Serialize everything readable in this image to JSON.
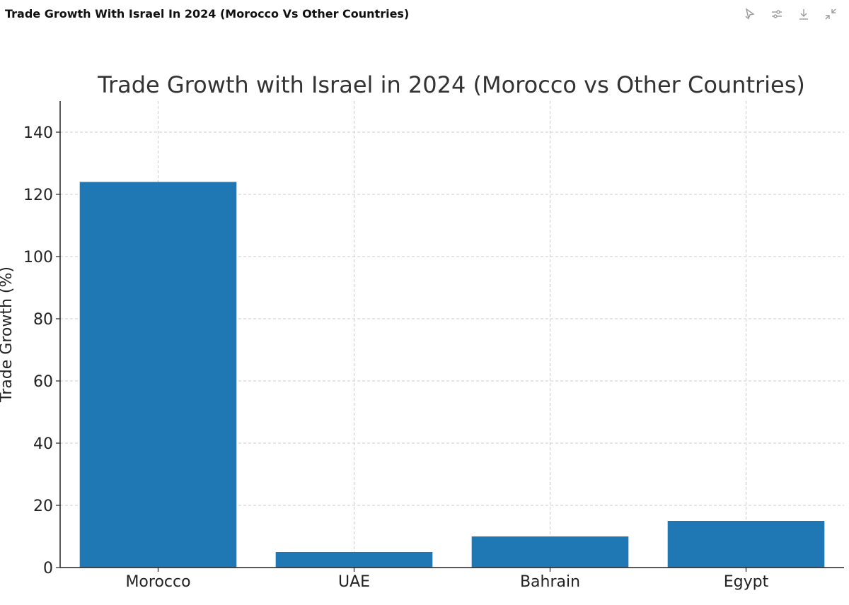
{
  "window": {
    "title": "Trade Growth With Israel In 2024 (Morocco Vs Other Countries)"
  },
  "toolbar": {
    "icons": [
      "interactive-mode-icon",
      "settings-sliders-icon",
      "download-icon",
      "collapse-icon"
    ]
  },
  "chart_data": {
    "type": "bar",
    "title": "Trade Growth with Israel in 2024 (Morocco vs Other Countries)",
    "xlabel": "",
    "ylabel": "Trade Growth (%)",
    "categories": [
      "Morocco",
      "UAE",
      "Bahrain",
      "Egypt"
    ],
    "values": [
      124,
      5,
      10,
      15
    ],
    "ylim": [
      0,
      150
    ],
    "yticks": [
      0,
      20,
      40,
      60,
      80,
      100,
      120,
      140
    ],
    "grid": true,
    "bar_color": "#1f77b4"
  }
}
